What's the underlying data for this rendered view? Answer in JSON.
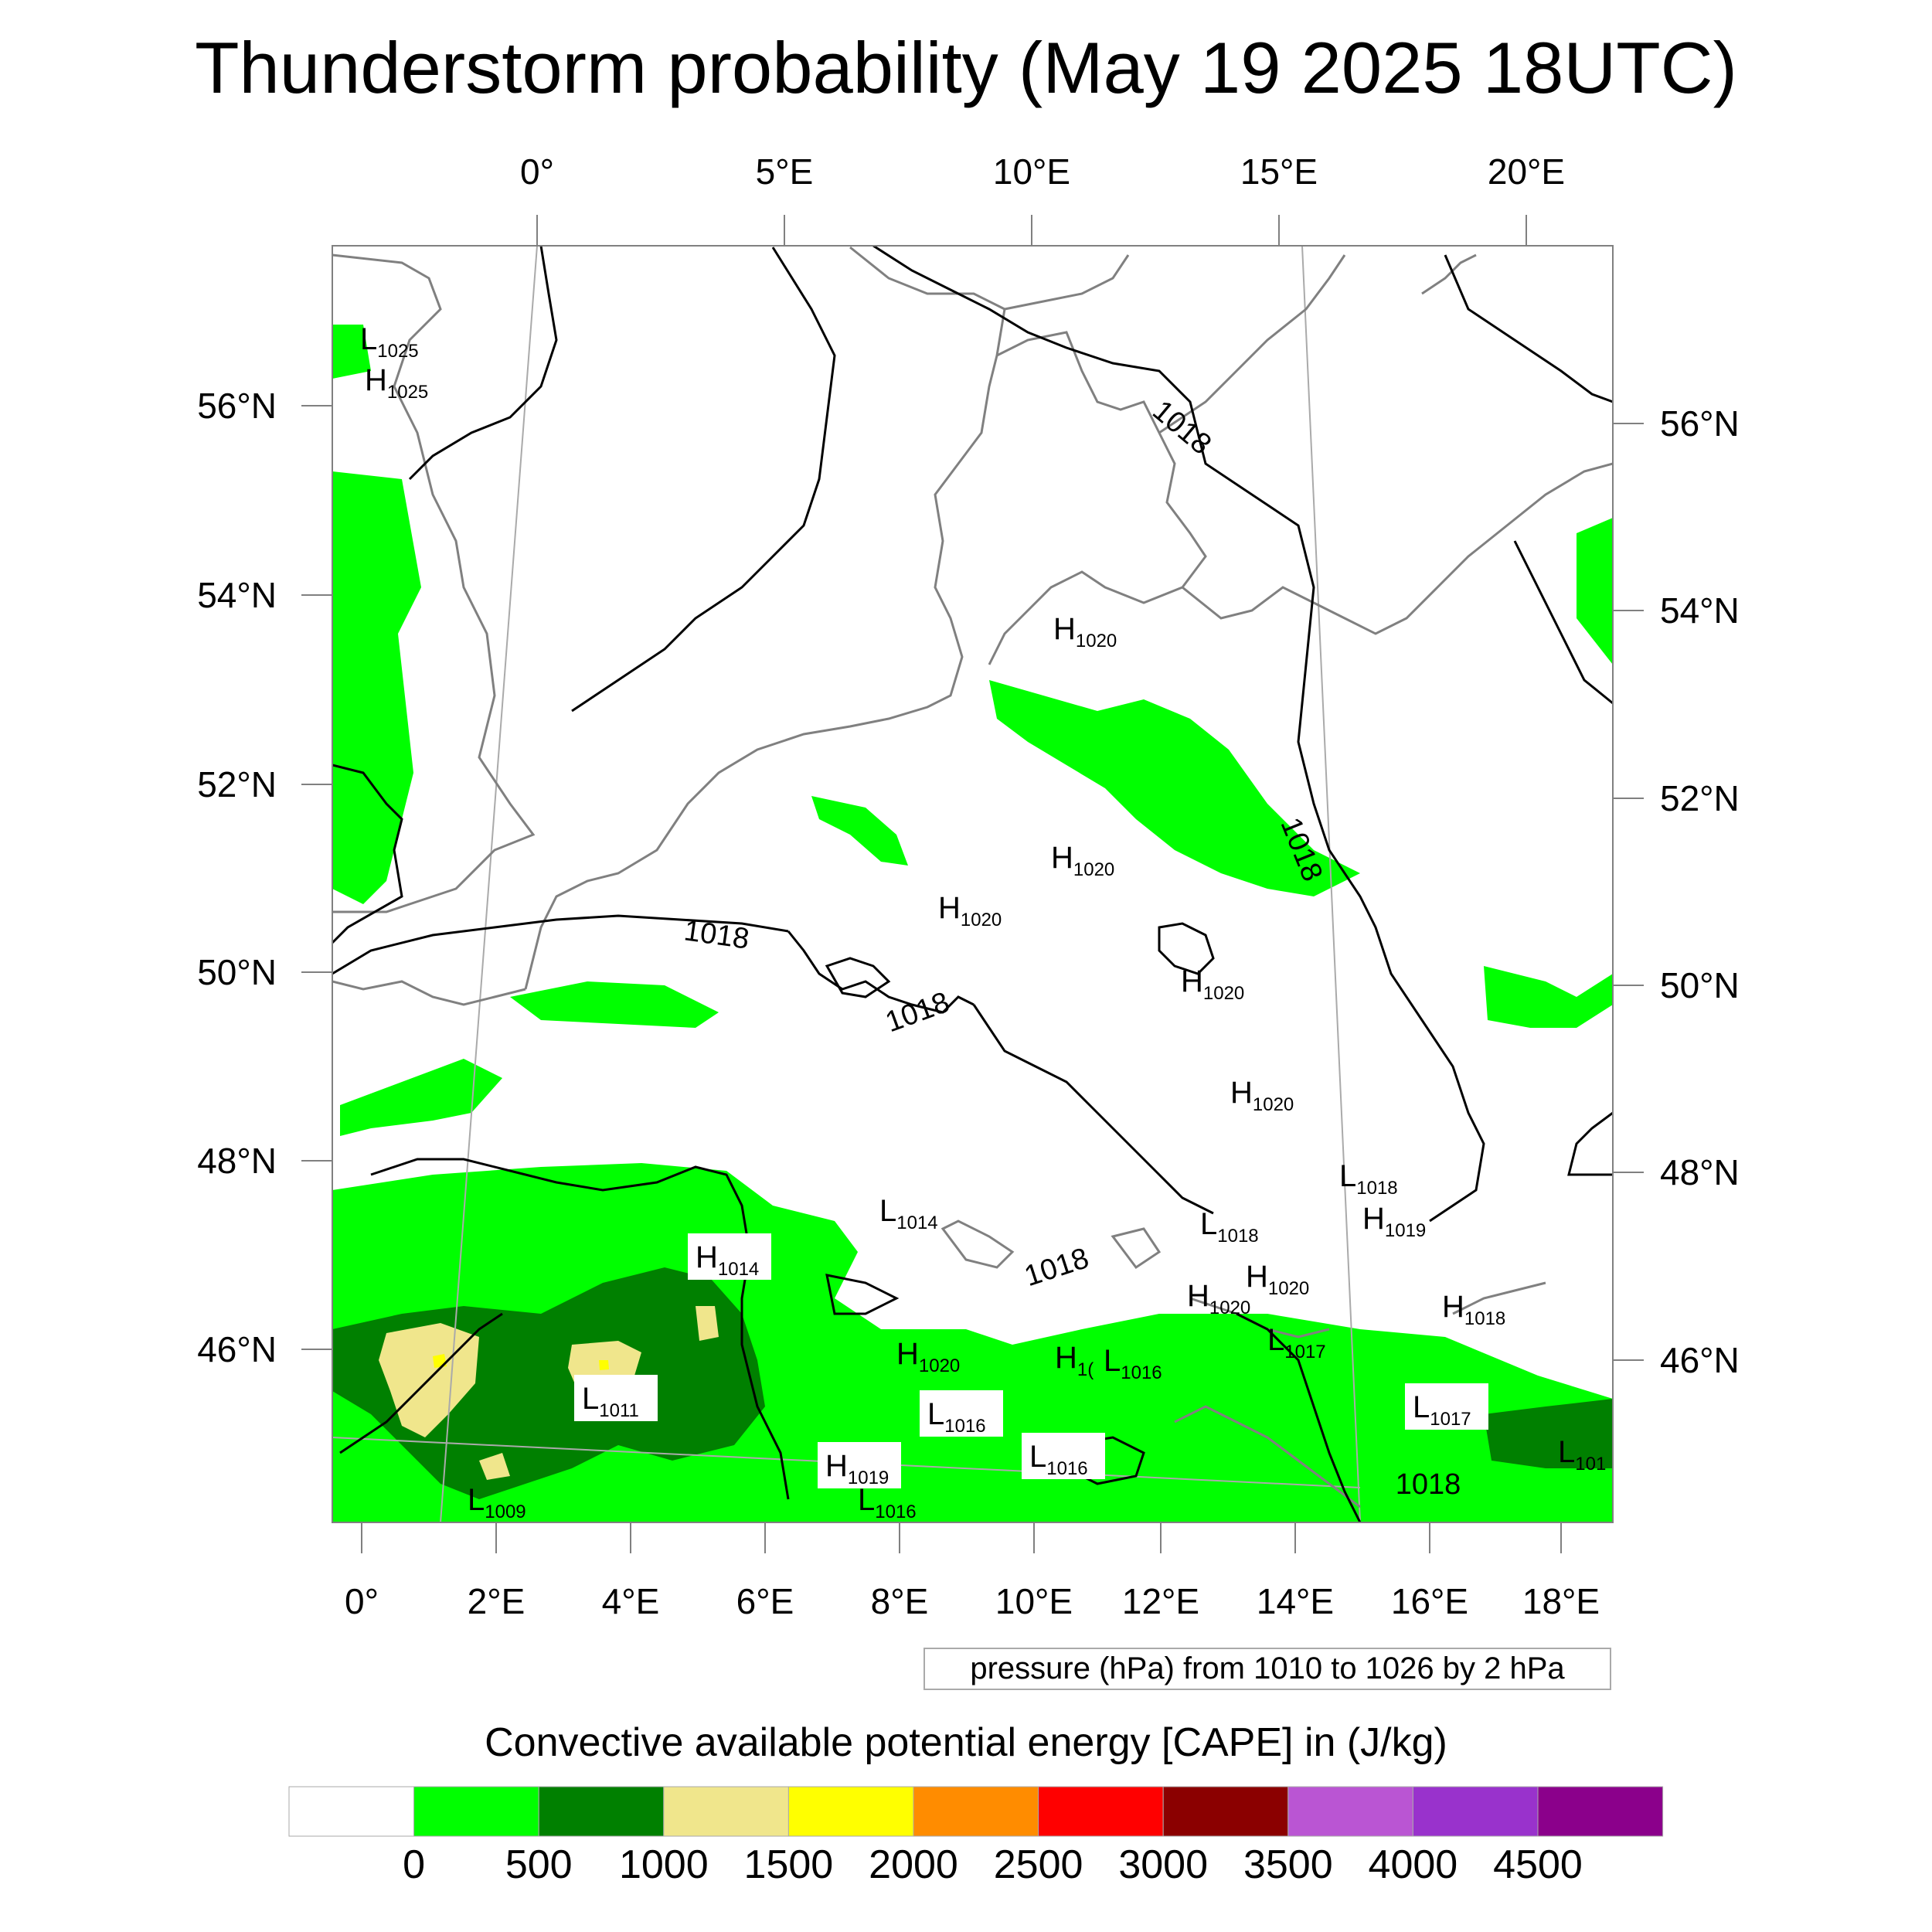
{
  "title": "Thunderstorm probability (May 19 2025 18UTC)",
  "top_lon_labels": [
    "0°",
    "5°E",
    "10°E",
    "15°E",
    "20°E"
  ],
  "left_lat_labels": [
    "56°N",
    "54°N",
    "52°N",
    "50°N",
    "48°N",
    "46°N"
  ],
  "right_lat_labels": [
    "56°N",
    "54°N",
    "52°N",
    "50°N",
    "48°N",
    "46°N"
  ],
  "bottom_lon_labels": [
    "0°",
    "2°E",
    "4°E",
    "6°E",
    "8°E",
    "10°E",
    "12°E",
    "14°E",
    "16°E",
    "18°E"
  ],
  "pressure_labels": [
    {
      "m": "L",
      "v": "1025"
    },
    {
      "m": "H",
      "v": "1025"
    },
    {
      "m": "H",
      "v": "1020"
    },
    {
      "m": "H",
      "v": "1020"
    },
    {
      "m": "H",
      "v": "1020"
    },
    {
      "m": "H",
      "v": "1020"
    },
    {
      "m": "H",
      "v": "1020"
    },
    {
      "m": "L",
      "v": "1018"
    },
    {
      "m": "H",
      "v": "1019"
    },
    {
      "m": "L",
      "v": "1014"
    },
    {
      "m": "L",
      "v": "1018"
    },
    {
      "m": "H",
      "v": "1014"
    },
    {
      "m": "H",
      "v": "1020"
    },
    {
      "m": "H",
      "v": "1020"
    },
    {
      "m": "L",
      "v": "1017"
    },
    {
      "m": "H",
      "v": "1018"
    },
    {
      "m": "H",
      "v": "1020"
    },
    {
      "m": "H",
      "v": "1("
    },
    {
      "m": "L",
      "v": "1016"
    },
    {
      "m": "L",
      "v": "1011"
    },
    {
      "m": "L",
      "v": "1016"
    },
    {
      "m": "L",
      "v": "1017"
    },
    {
      "m": "H",
      "v": "1019"
    },
    {
      "m": "L",
      "v": "1016"
    },
    {
      "m": "L",
      "v": "101"
    },
    {
      "m": "L",
      "v": "1016"
    },
    {
      "m": "L",
      "v": "1009"
    }
  ],
  "isobar_labels": [
    "1018",
    "1018",
    "1018",
    "1018",
    "1018",
    "1018"
  ],
  "pressure_note": "pressure (hPa) from 1010 to 1026 by 2 hPa",
  "colorbar": {
    "title": "Convective available potential energy [CAPE] in (J/kg)",
    "colors": [
      "#ffffff",
      "#00ff00",
      "#008000",
      "#f0e68c",
      "#ffff00",
      "#ff8c00",
      "#ff0000",
      "#8b0000",
      "#ba55d3",
      "#9932cc",
      "#8b008b"
    ],
    "tick_labels": [
      "0",
      "500",
      "1000",
      "1500",
      "2000",
      "2500",
      "3000",
      "3500",
      "4000",
      "4500"
    ]
  }
}
